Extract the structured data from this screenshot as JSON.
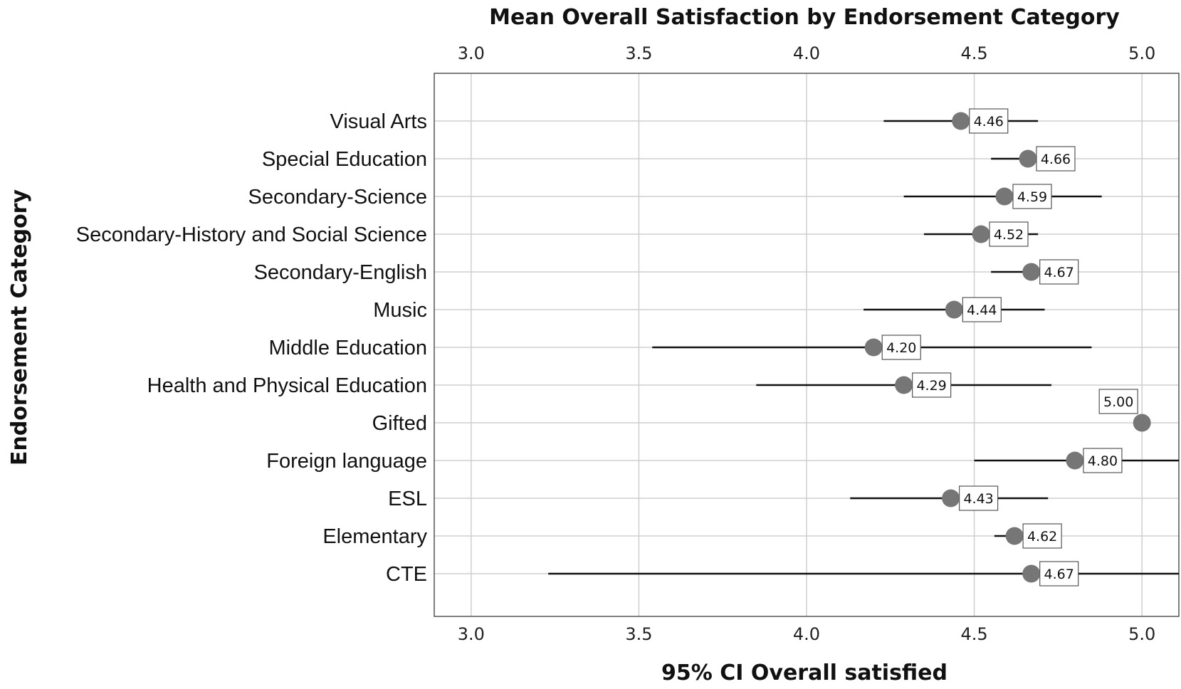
{
  "chart_data": {
    "type": "scatter",
    "title": "Mean Overall Satisfaction by Endorsement Category",
    "xlabel": "95% CI Overall satisfied",
    "ylabel": "Endorsement Category",
    "xlim": [
      2.89,
      5.11
    ],
    "x_ticks": [
      "3.0",
      "3.5",
      "4.0",
      "4.5",
      "5.0"
    ],
    "x_tick_values": [
      3.0,
      3.5,
      4.0,
      4.5,
      5.0
    ],
    "grid": true,
    "colors": {
      "point": "#767676",
      "ci_line": "#111111",
      "grid": "#cfcfcf",
      "frame": "#555555"
    },
    "categories": [
      "Visual Arts",
      "Special Education",
      "Secondary-Science",
      "Secondary-History and Social Science",
      "Secondary-English",
      "Music",
      "Middle Education",
      "Health and Physical Education",
      "Gifted",
      "Foreign language",
      "ESL",
      "Elementary",
      "CTE"
    ],
    "means": [
      4.46,
      4.66,
      4.59,
      4.52,
      4.67,
      4.44,
      4.2,
      4.29,
      5.0,
      4.8,
      4.43,
      4.62,
      4.67
    ],
    "mean_labels": [
      "4.46",
      "4.66",
      "4.59",
      "4.52",
      "4.67",
      "4.44",
      "4.20",
      "4.29",
      "5.00",
      "4.80",
      "4.43",
      "4.62",
      "4.67"
    ],
    "ci_low": [
      4.23,
      4.55,
      4.29,
      4.35,
      4.55,
      4.17,
      3.54,
      3.85,
      null,
      4.5,
      4.13,
      4.56,
      3.23
    ],
    "ci_high": [
      4.69,
      4.77,
      4.88,
      4.69,
      4.79,
      4.71,
      4.85,
      4.73,
      null,
      5.11,
      4.72,
      4.68,
      5.11
    ]
  }
}
